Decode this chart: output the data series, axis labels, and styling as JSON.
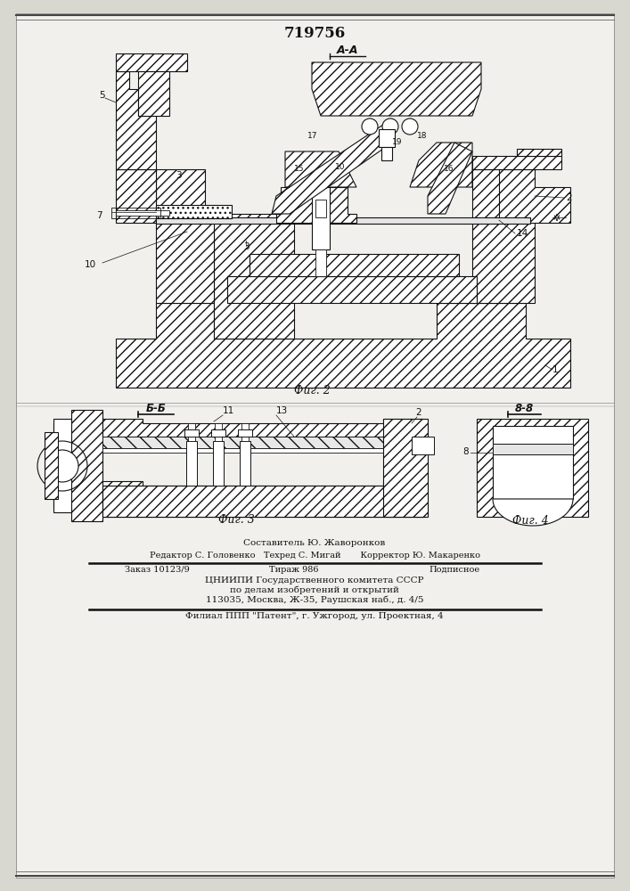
{
  "patent_number": "719756",
  "fig2_label": "Фиг. 2",
  "fig3_label": "Фиг. 3",
  "fig4_label": "Фиг. 4",
  "section_aa": "А-А",
  "section_bb": "Б-Б",
  "section_88": "8-8",
  "composer": "Составитель Ю. Жаворонков",
  "editor_line": "Редактор С. Головенко   Техред С. Мигай       Корректор Ю. Макаренко",
  "order": "Заказ 10123/9",
  "circulation": "Тираж 986",
  "subscription": "Подписное",
  "org_line1": "ЦНИИПИ Государственного комитета СССР",
  "org_line2": "по делам изобретений и открытий",
  "org_line3": "113035, Москва, Ж-35, Раушская наб., д. 4/5",
  "branch": "Филиал ППП \"Патент\", г. Ужгород, ул. Проектная, 4",
  "bg_color": "#d8d8d0",
  "paper_color": "#f2f0ec",
  "line_color": "#111111",
  "hatch_color": "#222222"
}
